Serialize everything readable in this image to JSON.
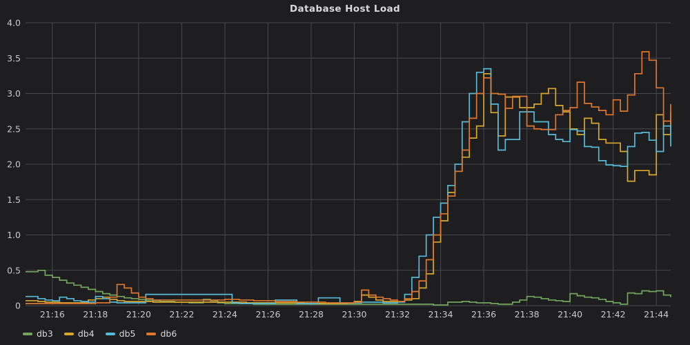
{
  "page": {
    "background": "#1e1e20"
  },
  "chart_data": {
    "type": "line",
    "title": "Database Host Load",
    "line_style": "step-after",
    "grid": true,
    "legend_position": "bottom-left",
    "background": "#1e1e20",
    "grid_color": "#47494e",
    "tick_text_color": "#c9cacc",
    "title_color": "#d8d9da",
    "time_start": "21:15:00",
    "time_end": "21:44:40",
    "point_interval_seconds": 20,
    "ylim": [
      0,
      4.0
    ],
    "y_ticks": [
      "4.0",
      "3.5",
      "3.0",
      "2.5",
      "2.0",
      "1.5",
      "1.0",
      "0.5",
      "0"
    ],
    "x_ticks": [
      "21:16",
      "21:18",
      "21:20",
      "21:22",
      "21:24",
      "21:26",
      "21:28",
      "21:30",
      "21:32",
      "21:34",
      "21:36",
      "21:38",
      "21:40",
      "21:42",
      "21:44"
    ],
    "series": [
      {
        "name": "db3",
        "color": "#74a65e",
        "values": [
          0.48,
          0.5,
          0.43,
          0.4,
          0.36,
          0.32,
          0.29,
          0.26,
          0.23,
          0.2,
          0.17,
          0.15,
          0.13,
          0.11,
          0.1,
          0.09,
          0.08,
          0.07,
          0.06,
          0.06,
          0.05,
          0.05,
          0.04,
          0.04,
          0.09,
          0.07,
          0.04,
          0.03,
          0.03,
          0.03,
          0.03,
          0.02,
          0.02,
          0.02,
          0.02,
          0.02,
          0.02,
          0.02,
          0.02,
          0.02,
          0.02,
          0.02,
          0.02,
          0.02,
          0.02,
          0.02,
          0.02,
          0.02,
          0.02,
          0.02,
          0.02,
          0.02,
          0.02,
          0.02,
          0.02,
          0.02,
          0.01,
          0.01,
          0.05,
          0.05,
          0.06,
          0.05,
          0.04,
          0.04,
          0.03,
          0.02,
          0.02,
          0.05,
          0.08,
          0.13,
          0.12,
          0.1,
          0.08,
          0.07,
          0.06,
          0.17,
          0.14,
          0.12,
          0.11,
          0.09,
          0.06,
          0.04,
          0.02,
          0.18,
          0.17,
          0.21,
          0.2,
          0.21,
          0.15,
          0.12
        ]
      },
      {
        "name": "db4",
        "color": "#d9a92c",
        "values": [
          0.07,
          0.06,
          0.05,
          0.05,
          0.04,
          0.04,
          0.04,
          0.04,
          0.08,
          0.1,
          0.12,
          0.09,
          0.07,
          0.06,
          0.06,
          0.06,
          0.06,
          0.05,
          0.05,
          0.05,
          0.05,
          0.05,
          0.05,
          0.05,
          0.05,
          0.05,
          0.05,
          0.05,
          0.05,
          0.05,
          0.04,
          0.04,
          0.04,
          0.04,
          0.04,
          0.04,
          0.04,
          0.04,
          0.03,
          0.03,
          0.03,
          0.03,
          0.03,
          0.03,
          0.04,
          0.06,
          0.15,
          0.12,
          0.08,
          0.06,
          0.06,
          0.06,
          0.08,
          0.1,
          0.25,
          0.45,
          0.9,
          1.2,
          1.6,
          1.9,
          2.1,
          2.37,
          2.54,
          3.28,
          2.73,
          2.4,
          2.95,
          2.95,
          2.8,
          2.8,
          2.85,
          3.0,
          3.07,
          2.83,
          2.74,
          2.5,
          2.42,
          2.65,
          2.58,
          2.35,
          2.3,
          2.3,
          2.18,
          1.76,
          1.91,
          1.91,
          1.85,
          2.7,
          2.42,
          2.73
        ]
      },
      {
        "name": "db5",
        "color": "#58bbd9",
        "values": [
          0.13,
          0.1,
          0.08,
          0.07,
          0.12,
          0.1,
          0.07,
          0.06,
          0.05,
          0.13,
          0.1,
          0.05,
          0.04,
          0.04,
          0.04,
          0.04,
          0.16,
          0.16,
          0.16,
          0.16,
          0.16,
          0.16,
          0.16,
          0.16,
          0.16,
          0.16,
          0.16,
          0.16,
          0.04,
          0.03,
          0.03,
          0.03,
          0.03,
          0.03,
          0.08,
          0.08,
          0.08,
          0.03,
          0.03,
          0.03,
          0.11,
          0.11,
          0.11,
          0.04,
          0.04,
          0.04,
          0.05,
          0.05,
          0.05,
          0.04,
          0.04,
          0.05,
          0.16,
          0.4,
          0.7,
          1.0,
          1.25,
          1.45,
          1.7,
          2.0,
          2.6,
          3.0,
          3.3,
          3.35,
          2.85,
          2.2,
          2.35,
          2.35,
          2.74,
          2.74,
          2.6,
          2.6,
          2.42,
          2.35,
          2.32,
          2.49,
          2.47,
          2.25,
          2.24,
          2.05,
          1.99,
          1.98,
          1.97,
          2.25,
          2.44,
          2.45,
          2.34,
          2.18,
          2.54,
          2.25
        ]
      },
      {
        "name": "db6",
        "color": "#e0772e",
        "values": [
          0.03,
          0.03,
          0.03,
          0.03,
          0.03,
          0.03,
          0.03,
          0.03,
          0.03,
          0.04,
          0.04,
          0.12,
          0.3,
          0.25,
          0.18,
          0.12,
          0.1,
          0.08,
          0.08,
          0.08,
          0.08,
          0.08,
          0.08,
          0.08,
          0.08,
          0.08,
          0.08,
          0.09,
          0.09,
          0.08,
          0.08,
          0.07,
          0.07,
          0.07,
          0.06,
          0.06,
          0.06,
          0.05,
          0.05,
          0.05,
          0.05,
          0.04,
          0.04,
          0.04,
          0.04,
          0.05,
          0.22,
          0.15,
          0.12,
          0.1,
          0.08,
          0.06,
          0.1,
          0.2,
          0.35,
          0.65,
          1.0,
          1.3,
          1.55,
          1.9,
          2.2,
          2.65,
          3.0,
          3.22,
          3.0,
          2.99,
          2.79,
          2.96,
          2.96,
          2.54,
          2.5,
          2.49,
          2.49,
          2.7,
          2.76,
          2.8,
          3.16,
          2.86,
          2.81,
          2.76,
          2.7,
          2.91,
          2.75,
          2.98,
          3.28,
          3.59,
          3.47,
          3.08,
          2.61,
          2.85
        ]
      }
    ]
  }
}
